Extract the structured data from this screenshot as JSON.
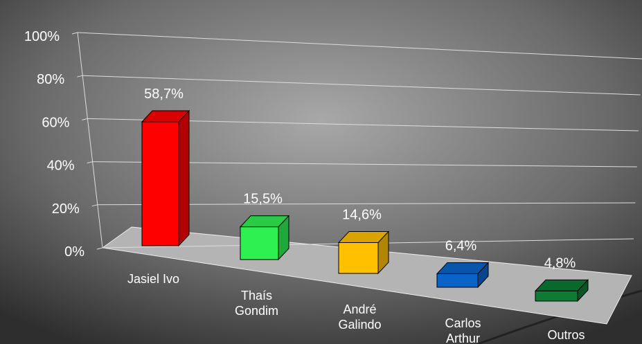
{
  "chart_data": {
    "type": "bar3d",
    "categories": [
      "Jasiel Ivo",
      "Thaís\nGondim",
      "André\nGalindo",
      "Carlos\nArthur",
      "Outros"
    ],
    "values": [
      58.7,
      15.5,
      14.6,
      6.4,
      4.8
    ],
    "value_labels": [
      "58,7%",
      "15,5%",
      "14,6%",
      "6,4%",
      "4,8%"
    ],
    "colors": [
      "#ff0000",
      "#2ef050",
      "#ffc000",
      "#0a64c8",
      "#0d7a35"
    ],
    "ylim": [
      0,
      100
    ],
    "yticks": [
      {
        "value": 0,
        "label": "0%"
      },
      {
        "value": 20,
        "label": "20%"
      },
      {
        "value": 40,
        "label": "40%"
      },
      {
        "value": 60,
        "label": "60%"
      },
      {
        "value": 80,
        "label": "80%"
      },
      {
        "value": 100,
        "label": "100%"
      }
    ],
    "grid": true
  }
}
